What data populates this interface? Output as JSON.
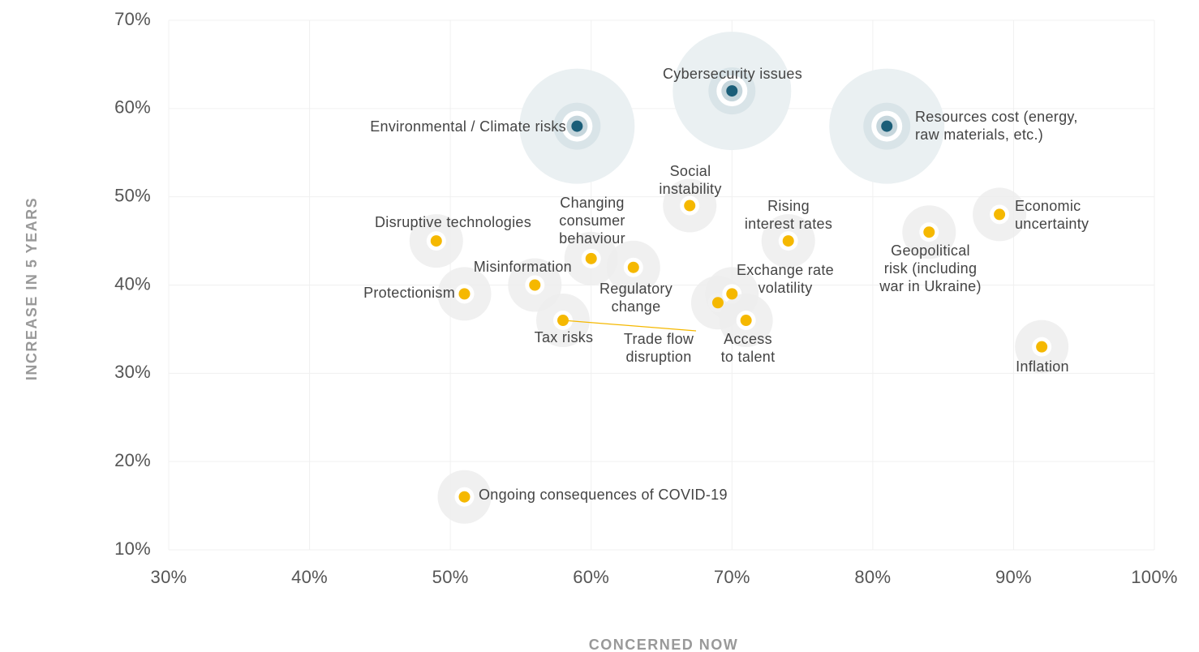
{
  "chart_data": {
    "type": "scatter",
    "xlabel": "CONCERNED NOW",
    "ylabel": "INCREASE IN 5 YEARS",
    "xlim": [
      30,
      100
    ],
    "ylim": [
      10,
      70
    ],
    "xticks": [
      {
        "value": 30,
        "label": "30%"
      },
      {
        "value": 40,
        "label": "40%"
      },
      {
        "value": 50,
        "label": "50%"
      },
      {
        "value": 60,
        "label": "60%"
      },
      {
        "value": 70,
        "label": "70%"
      },
      {
        "value": 80,
        "label": "80%"
      },
      {
        "value": 90,
        "label": "90%"
      },
      {
        "value": 100,
        "label": "100%"
      }
    ],
    "yticks": [
      {
        "value": 10,
        "label": "10%"
      },
      {
        "value": 20,
        "label": "20%"
      },
      {
        "value": 30,
        "label": "30%"
      },
      {
        "value": 40,
        "label": "40%"
      },
      {
        "value": 50,
        "label": "50%"
      },
      {
        "value": 60,
        "label": "60%"
      },
      {
        "value": 70,
        "label": "70%"
      }
    ],
    "grid": true,
    "series": [
      {
        "color": "#1b5e78",
        "points": [
          {
            "label": [
              "Environmental / Climate risks"
            ],
            "x": 59,
            "y": 58
          },
          {
            "label": [
              "Cybersecurity issues"
            ],
            "x": 70,
            "y": 62
          },
          {
            "label": [
              "Resources cost (energy,",
              "raw materials, etc.)"
            ],
            "x": 81,
            "y": 58
          }
        ]
      },
      {
        "color": "#f5b800",
        "points": [
          {
            "label": [
              "Social",
              "instability"
            ],
            "x": 67,
            "y": 49
          },
          {
            "label": [
              "Rising",
              "interest rates"
            ],
            "x": 74,
            "y": 45
          },
          {
            "label": [
              "Economic",
              "uncertainty"
            ],
            "x": 89,
            "y": 48
          },
          {
            "label": [
              "Geopolitical",
              "risk (including",
              "war in Ukraine)"
            ],
            "x": 84,
            "y": 46
          },
          {
            "label": [
              "Disruptive technologies"
            ],
            "x": 49,
            "y": 45
          },
          {
            "label": [
              "Changing",
              "consumer",
              "behaviour"
            ],
            "x": 60,
            "y": 43
          },
          {
            "label": [
              "Regulatory",
              "change"
            ],
            "x": 63,
            "y": 42
          },
          {
            "label": [
              "Misinformation"
            ],
            "x": 56,
            "y": 40
          },
          {
            "label": [
              "Protectionism"
            ],
            "x": 51,
            "y": 39
          },
          {
            "label": [
              "Tax risks"
            ],
            "x": 58,
            "y": 36
          },
          {
            "label": [
              "Trade flow",
              "disruption"
            ],
            "x": 69,
            "y": 38
          },
          {
            "label": [
              "Exchange rate",
              "volatility"
            ],
            "x": 70,
            "y": 39
          },
          {
            "label": [
              "Access",
              "to talent"
            ],
            "x": 71,
            "y": 36
          },
          {
            "label": [
              "Inflation"
            ],
            "x": 92,
            "y": 33
          },
          {
            "label": [
              "Ongoing consequences of COVID-19"
            ],
            "x": 51,
            "y": 16
          }
        ]
      }
    ]
  }
}
